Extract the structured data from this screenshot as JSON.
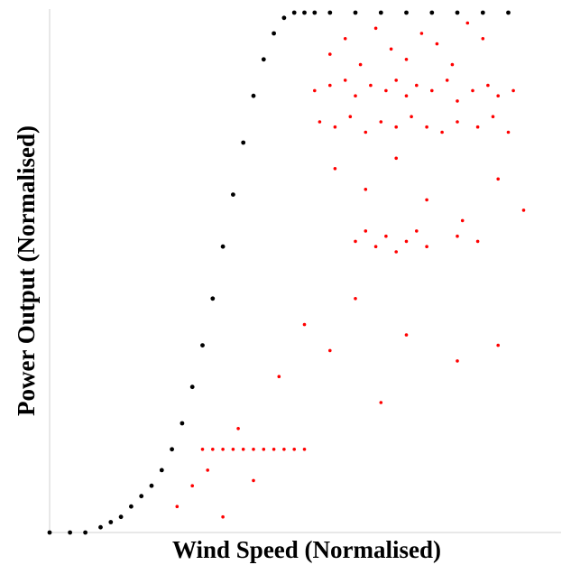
{
  "chart_data": {
    "type": "scatter",
    "title": "",
    "xlabel": "Wind Speed (Normalised)",
    "ylabel": "Power Output (Normalised)",
    "xlim": [
      0,
      1
    ],
    "ylim": [
      0,
      1
    ],
    "grid": false,
    "legend": "none",
    "series": [
      {
        "color": "#000000",
        "description_role": "normal",
        "x": [
          0.0,
          0.04,
          0.07,
          0.1,
          0.12,
          0.14,
          0.16,
          0.18,
          0.2,
          0.22,
          0.24,
          0.26,
          0.28,
          0.3,
          0.32,
          0.34,
          0.36,
          0.38,
          0.4,
          0.42,
          0.44,
          0.46,
          0.48,
          0.5,
          0.52,
          0.55,
          0.6,
          0.65,
          0.7,
          0.75,
          0.8,
          0.85,
          0.9
        ],
        "y": [
          0.0,
          0.0,
          0.0,
          0.01,
          0.02,
          0.03,
          0.05,
          0.07,
          0.09,
          0.12,
          0.16,
          0.21,
          0.28,
          0.36,
          0.45,
          0.55,
          0.65,
          0.75,
          0.84,
          0.91,
          0.96,
          0.99,
          1.0,
          1.0,
          1.0,
          1.0,
          1.0,
          1.0,
          1.0,
          1.0,
          1.0,
          1.0,
          1.0
        ]
      },
      {
        "color": "#ff0000",
        "description_role": "anomalous",
        "x": [
          0.52,
          0.55,
          0.58,
          0.6,
          0.63,
          0.66,
          0.68,
          0.7,
          0.72,
          0.75,
          0.78,
          0.8,
          0.83,
          0.86,
          0.88,
          0.91,
          0.53,
          0.56,
          0.59,
          0.62,
          0.65,
          0.68,
          0.71,
          0.74,
          0.77,
          0.8,
          0.84,
          0.87,
          0.9,
          0.55,
          0.58,
          0.61,
          0.64,
          0.67,
          0.7,
          0.73,
          0.76,
          0.79,
          0.82,
          0.85,
          0.6,
          0.62,
          0.64,
          0.66,
          0.68,
          0.7,
          0.72,
          0.74,
          0.8,
          0.84,
          0.56,
          0.62,
          0.68,
          0.74,
          0.81,
          0.88,
          0.93,
          0.3,
          0.32,
          0.34,
          0.36,
          0.38,
          0.4,
          0.42,
          0.44,
          0.46,
          0.48,
          0.5,
          0.25,
          0.28,
          0.31,
          0.34,
          0.37,
          0.4,
          0.45,
          0.5,
          0.55,
          0.6,
          0.65,
          0.7,
          0.8,
          0.88
        ],
        "y": [
          0.85,
          0.86,
          0.87,
          0.84,
          0.86,
          0.85,
          0.87,
          0.84,
          0.86,
          0.85,
          0.87,
          0.83,
          0.85,
          0.86,
          0.84,
          0.85,
          0.79,
          0.78,
          0.8,
          0.77,
          0.79,
          0.78,
          0.8,
          0.78,
          0.77,
          0.79,
          0.78,
          0.8,
          0.77,
          0.92,
          0.95,
          0.9,
          0.97,
          0.93,
          0.91,
          0.96,
          0.94,
          0.9,
          0.98,
          0.95,
          0.56,
          0.58,
          0.55,
          0.57,
          0.54,
          0.56,
          0.58,
          0.55,
          0.57,
          0.56,
          0.7,
          0.66,
          0.72,
          0.64,
          0.6,
          0.68,
          0.62,
          0.16,
          0.16,
          0.16,
          0.16,
          0.16,
          0.16,
          0.16,
          0.16,
          0.16,
          0.16,
          0.16,
          0.05,
          0.09,
          0.12,
          0.03,
          0.2,
          0.1,
          0.3,
          0.4,
          0.35,
          0.45,
          0.25,
          0.38,
          0.33,
          0.36
        ]
      }
    ]
  }
}
